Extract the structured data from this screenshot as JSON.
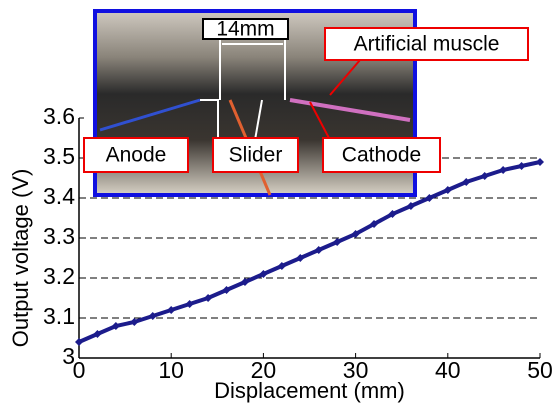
{
  "chart_data": {
    "type": "line",
    "x_label": "Displacement (mm)",
    "y_label": "Output voltage (V)",
    "x": [
      0,
      2,
      4,
      6,
      8,
      10,
      12,
      14,
      16,
      18,
      20,
      22,
      24,
      26,
      28,
      30,
      32,
      34,
      36,
      38,
      40,
      42,
      44,
      46,
      48,
      50
    ],
    "series": [
      {
        "color": "#1c1c8c",
        "values": [
          3.04,
          3.06,
          3.08,
          3.09,
          3.105,
          3.12,
          3.135,
          3.15,
          3.17,
          3.19,
          3.21,
          3.23,
          3.25,
          3.27,
          3.29,
          3.31,
          3.335,
          3.36,
          3.38,
          3.4,
          3.42,
          3.44,
          3.455,
          3.47,
          3.48,
          3.49
        ]
      }
    ],
    "xlim": [
      0,
      50
    ],
    "xticks": [
      0,
      10,
      20,
      30,
      40,
      50
    ],
    "ylim": [
      3,
      3.6
    ],
    "yticks": [
      3,
      3.1,
      3.2,
      3.3,
      3.4,
      3.5,
      3.6
    ],
    "grid": true,
    "annotations": [
      "14mm",
      "Artificial muscle",
      "Anode",
      "Slider",
      "Cathode"
    ]
  }
}
